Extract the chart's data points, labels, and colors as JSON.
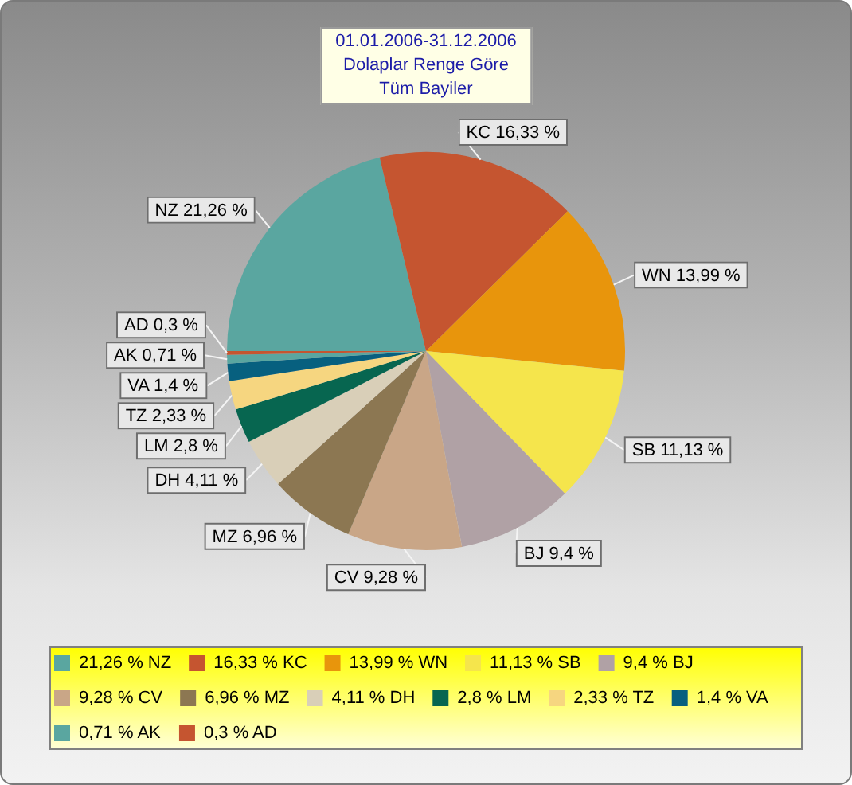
{
  "chart_data": {
    "type": "pie",
    "title": "01.01.2006-31.12.2006",
    "subtitle": "Dolaplar Renge Göre",
    "annotations": [
      "Tüm Bayiler"
    ],
    "categories": [
      "NZ",
      "KC",
      "WN",
      "SB",
      "BJ",
      "CV",
      "MZ",
      "DH",
      "LM",
      "TZ",
      "VA",
      "AK",
      "AD"
    ],
    "values": [
      21.26,
      16.33,
      13.99,
      11.13,
      9.4,
      9.28,
      6.96,
      4.11,
      2.8,
      2.33,
      1.4,
      0.71,
      0.3
    ],
    "value_labels": [
      "21,26 %",
      "16,33 %",
      "13,99 %",
      "11,13 %",
      "9,4 %",
      "9,28 %",
      "6,96 %",
      "4,11 %",
      "2,8 %",
      "2,33 %",
      "1,4 %",
      "0,71 %",
      "0,3 %"
    ],
    "colors": [
      "#5aa6a0",
      "#c55530",
      "#e8950c",
      "#f5e54c",
      "#b0a1a5",
      "#c9a687",
      "#8c7752",
      "#d9cfb8",
      "#076650",
      "#f6d680",
      "#07607f",
      "#5aa6a0",
      "#c55530"
    ],
    "legend": "bottom"
  }
}
